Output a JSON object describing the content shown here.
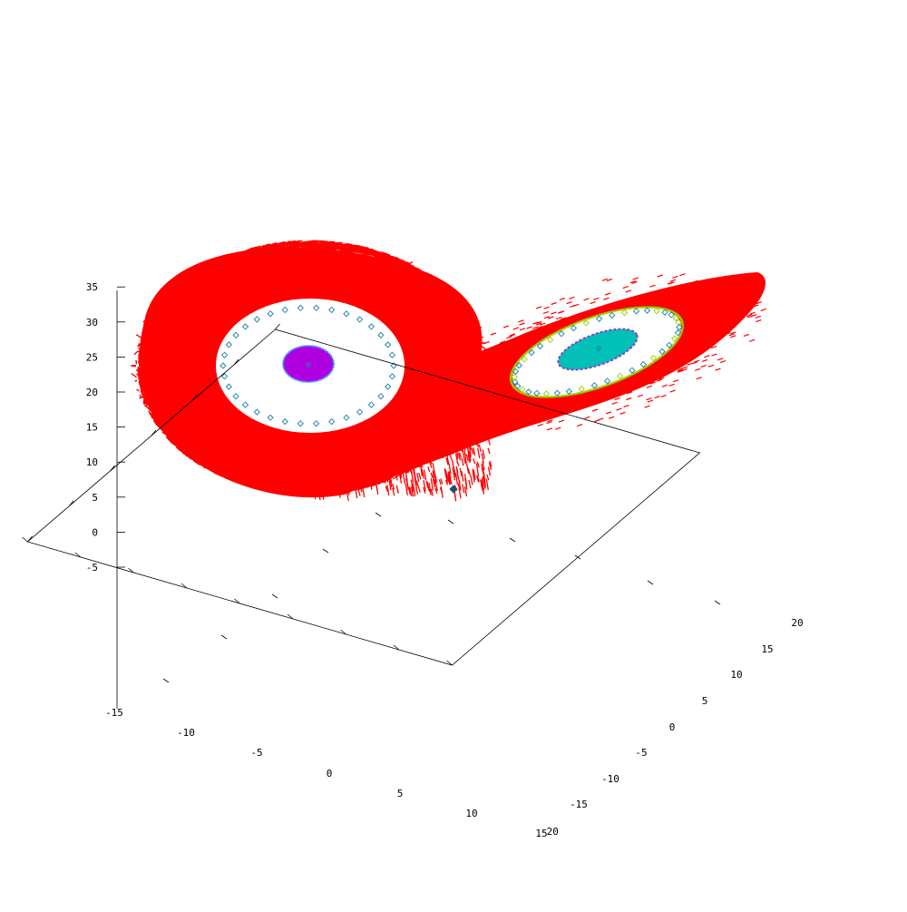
{
  "chart_data": {
    "type": "scatter",
    "title": "",
    "xlabel": "",
    "ylabel": "",
    "zlabel": "",
    "x_ticks": [
      "-15",
      "-10",
      "-5",
      "0",
      "5",
      "10",
      "15"
    ],
    "y_ticks": [
      "-20",
      "-15",
      "-10",
      "-5",
      "0",
      "5",
      "10",
      "15",
      "20"
    ],
    "z_ticks": [
      "-5",
      "0",
      "5",
      "10",
      "15",
      "20",
      "25",
      "30",
      "35"
    ],
    "xlim": [
      -15,
      15
    ],
    "ylim": [
      -20,
      20
    ],
    "zlim": [
      -5,
      35
    ],
    "grid": false,
    "legend": "none",
    "colors": {
      "attractor": "#ff0000",
      "orbit_markers": "#1a7fa8",
      "left_fixed_region": "#b000e0",
      "left_fixed_edge": "#3aa0ff",
      "right_fixed_region": "#00c0b8",
      "right_fixed_edge": "#8a40c0",
      "right_ring": "#9ad000",
      "fixed_point": "#1a5070"
    },
    "series": [
      {
        "kind": "attractor_band",
        "color": "#ff0000"
      },
      {
        "kind": "orbit_left",
        "marker": "diamond-open",
        "center": [
          -8.5,
          -8.5,
          27
        ],
        "radius": 6.5
      },
      {
        "kind": "orbit_right",
        "marker": "diamond-open",
        "center": [
          8.5,
          8.5,
          27
        ],
        "radius": 6.5
      },
      {
        "kind": "fixed_point_origin",
        "point": [
          0,
          0,
          0
        ]
      }
    ]
  }
}
